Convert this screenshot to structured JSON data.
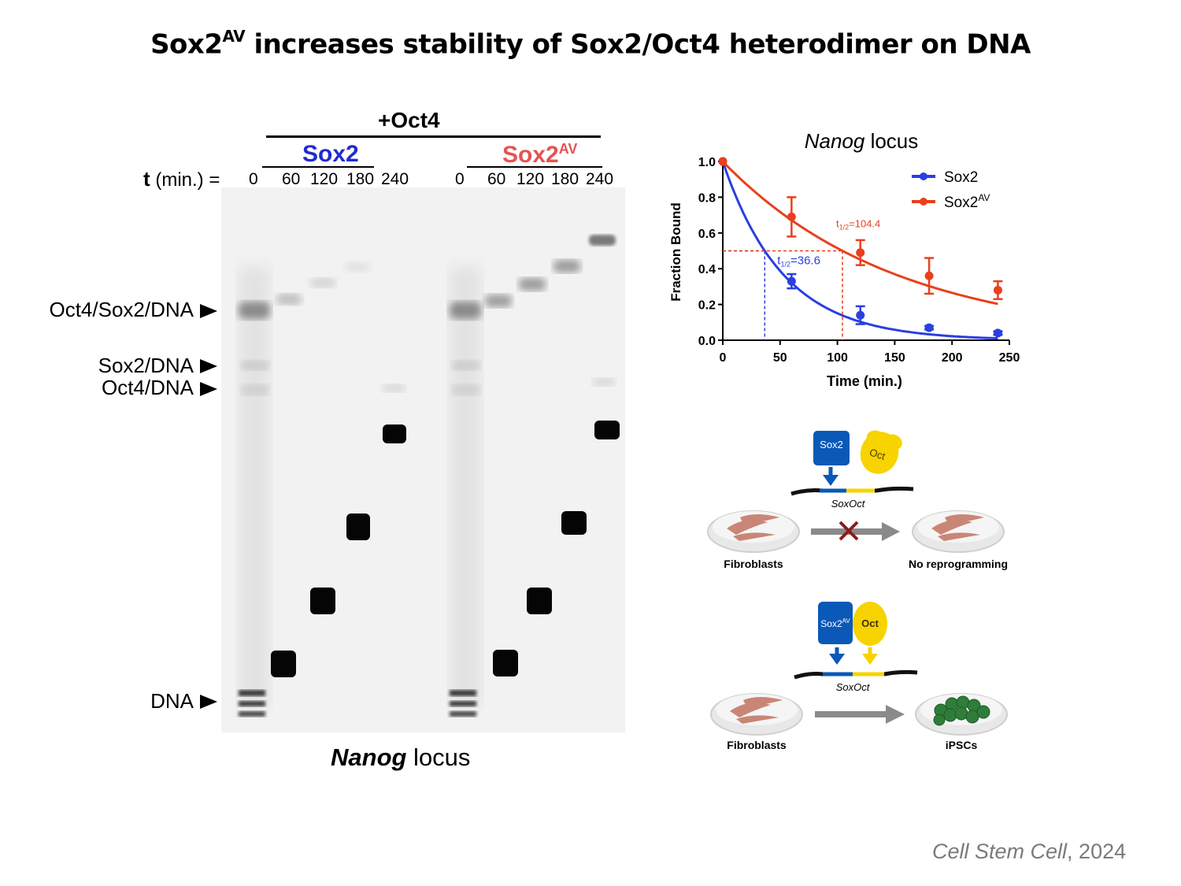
{
  "title": {
    "main": "Sox2",
    "sup": "AV",
    "rest": " increases stability of Sox2/Oct4 heterodimer on DNA"
  },
  "gel": {
    "group_label": "+Oct4",
    "sox2_label": "Sox2",
    "sox2av_label": "Sox2",
    "sox2av_sup": "AV",
    "t_label_bold": "t",
    "t_label_rest": " (min.) =",
    "lanes_sox2": [
      "0",
      "60",
      "120",
      "180",
      "240"
    ],
    "lanes_sox2av": [
      "0",
      "60",
      "120",
      "180",
      "240"
    ],
    "band_labels": {
      "complex": "Oct4/Sox2/DNA",
      "sox2dna": "Sox2/DNA",
      "oct4dna": "Oct4/DNA",
      "dna": "DNA"
    },
    "caption_bold": "Nanog",
    "caption_rest": " locus"
  },
  "chart_data": {
    "type": "line",
    "title_italic": "Nanog",
    "title_rest": " locus",
    "xlabel": "Time (min.)",
    "ylabel": "Fraction Bound",
    "xlim": [
      0,
      250
    ],
    "ylim": [
      0,
      1.0
    ],
    "xticks": [
      "0",
      "50",
      "100",
      "150",
      "200",
      "250"
    ],
    "yticks": [
      "0.0",
      "0.2",
      "0.4",
      "0.6",
      "0.8",
      "1.0"
    ],
    "yticks_values": [
      0,
      0.2,
      0.4,
      0.6,
      0.8,
      1.0
    ],
    "legend_position": "top-right",
    "series": [
      {
        "name": "Sox2",
        "color": "#2a3fe0",
        "halflife": 36.6,
        "x": [
          0,
          60,
          120,
          180,
          240
        ],
        "y": [
          1.0,
          0.33,
          0.14,
          0.07,
          0.04
        ],
        "err": [
          0,
          0.04,
          0.05,
          0.01,
          0.01
        ],
        "annotation_main": "t",
        "annotation_sub": "1/2",
        "annotation_value": "=36.6"
      },
      {
        "name": "Sox2",
        "name_sup": "AV",
        "color": "#e8401c",
        "halflife": 104.4,
        "x": [
          0,
          60,
          120,
          180,
          240
        ],
        "y": [
          1.0,
          0.69,
          0.49,
          0.36,
          0.28
        ],
        "err": [
          0,
          0.11,
          0.07,
          0.1,
          0.05
        ],
        "annotation_main": "t",
        "annotation_sub": "1/2",
        "annotation_value": "=104.4"
      }
    ]
  },
  "schematic": {
    "top": {
      "sox_label": "Sox2",
      "oct_label": "Oct",
      "site_label": "SoxOct",
      "left_label": "Fibroblasts",
      "right_label": "No reprogramming"
    },
    "bottom": {
      "sox_label": "Sox2",
      "sox_sup": "AV",
      "oct_label": "Oct",
      "site_label": "SoxOct",
      "left_label": "Fibroblasts",
      "right_label": "iPSCs"
    }
  },
  "citation": {
    "journal": "Cell Stem Cell",
    "year": ", 2024"
  }
}
